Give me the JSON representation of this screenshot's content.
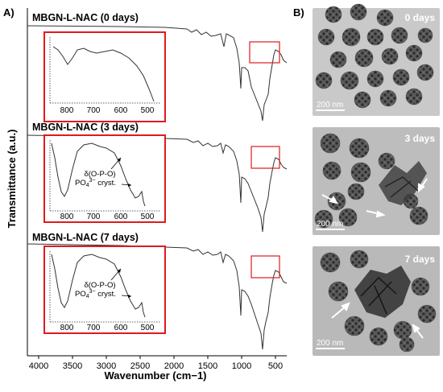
{
  "panel_a": {
    "label": "A)",
    "ylabel": "Transmittance (a.u.)",
    "xlabel": "Wavenumber (cm−1)",
    "xticks": [
      "4000",
      "3500",
      "3000",
      "2500",
      "2000",
      "1500",
      "1000",
      "500"
    ],
    "spectra": [
      {
        "title": "MBGN-L-NAC (0 days)"
      },
      {
        "title": "MBGN-L-NAC (3 days)"
      },
      {
        "title": "MBGN-L-NAC (7 days)"
      }
    ],
    "inset_xticks": [
      "800",
      "700",
      "600",
      "500"
    ],
    "annotation_line1": "δ(O-P-O)",
    "annotation_po4": "PO",
    "annotation_sub": "4",
    "annotation_sup": "3−",
    "annotation_cryst": " cryst."
  },
  "panel_b": {
    "label": "B)",
    "images": [
      {
        "day_label": "0 days",
        "scale": "200 nm"
      },
      {
        "day_label": "3 days",
        "scale": "200 nm"
      },
      {
        "day_label": "7 days",
        "scale": "200 nm"
      }
    ]
  },
  "colors": {
    "inset_border": "#e0191e",
    "curve": "#333333"
  }
}
